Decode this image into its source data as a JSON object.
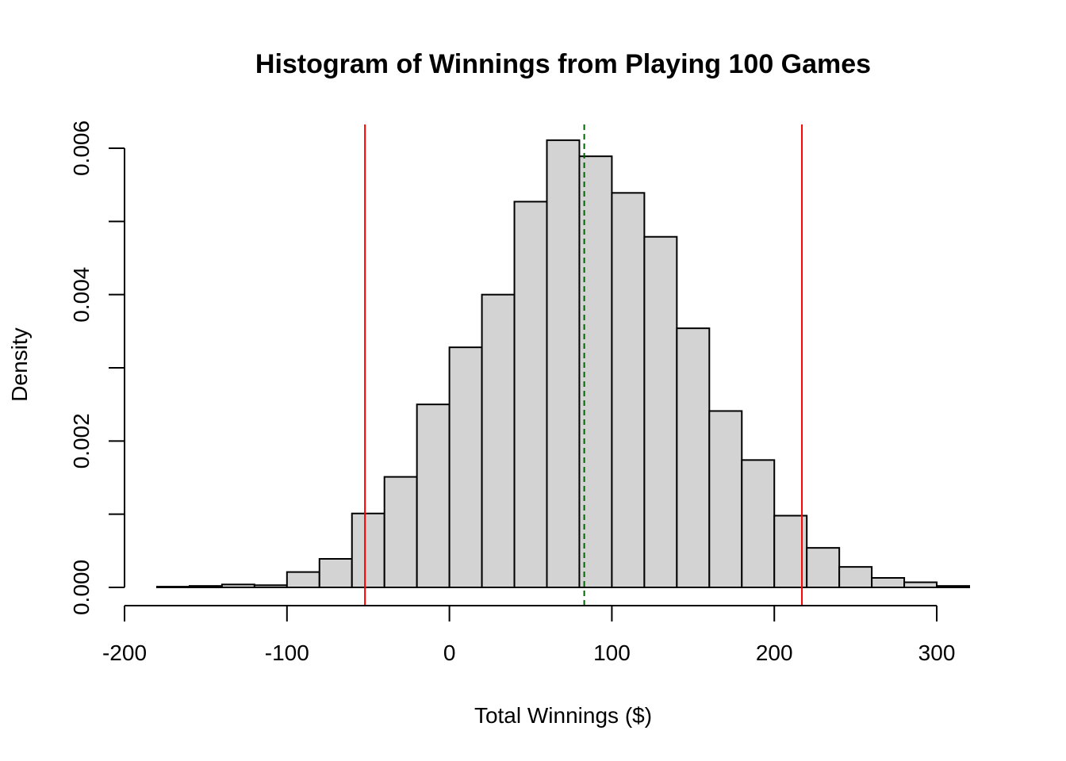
{
  "chart_data": {
    "type": "bar",
    "title": "Histogram of Winnings from Playing 100 Games",
    "xlabel": "Total Winnings ($)",
    "ylabel": "Density",
    "xlim": [
      -200,
      320
    ],
    "ylim": [
      0,
      0.006
    ],
    "x_ticks": [
      -200,
      -100,
      0,
      100,
      200,
      300
    ],
    "x_tick_labels": [
      "-200",
      "-100",
      "0",
      "100",
      "200",
      "300"
    ],
    "y_ticks": [
      0,
      0.001,
      0.002,
      0.003,
      0.004,
      0.005,
      0.006
    ],
    "y_tick_labels": [
      "0.000",
      "0.002",
      "0.004",
      "0.006"
    ],
    "y_labeled_ticks": [
      0,
      0.002,
      0.004,
      0.006
    ],
    "bin_width": 20,
    "bin_edges": [
      -180,
      -160,
      -140,
      -120,
      -100,
      -80,
      -60,
      -40,
      -20,
      0,
      20,
      40,
      60,
      80,
      100,
      120,
      140,
      160,
      180,
      200,
      220,
      240,
      260,
      280,
      300,
      320
    ],
    "values": [
      1e-05,
      2e-05,
      4e-05,
      3e-05,
      0.00021,
      0.00039,
      0.00101,
      0.00151,
      0.0025,
      0.00328,
      0.004,
      0.00527,
      0.00611,
      0.00589,
      0.00539,
      0.00479,
      0.00354,
      0.00241,
      0.00174,
      0.00098,
      0.00054,
      0.00028,
      0.00013,
      7e-05,
      2e-05
    ],
    "bar_fill": "#d3d3d3",
    "bar_stroke": "#000000",
    "reference_lines": [
      {
        "x": -52,
        "color": "#ff0000",
        "style": "solid"
      },
      {
        "x": 83,
        "color": "#006400",
        "style": "dashed"
      },
      {
        "x": 217,
        "color": "#ff0000",
        "style": "solid"
      }
    ],
    "grid": false,
    "legend": "none"
  }
}
